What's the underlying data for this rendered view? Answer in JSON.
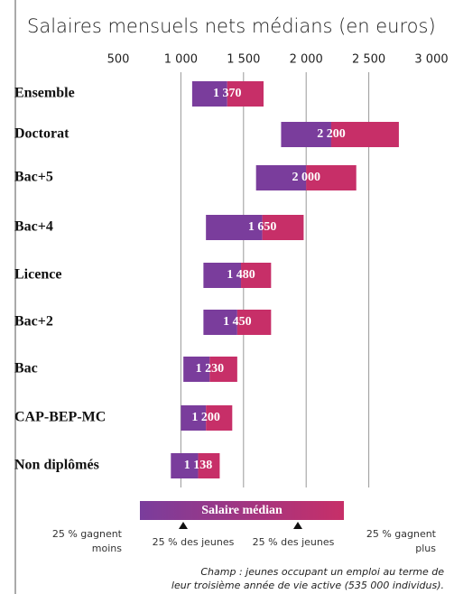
{
  "chart_data": {
    "type": "range_bar",
    "title": "Salaires mensuels nets médians (en euros)",
    "categories": [
      "Ensemble",
      "Doctorat",
      "Bac+5",
      "Bac+4",
      "Licence",
      "Bac+2",
      "Bac",
      "CAP-BEP-MC",
      "Non diplômés"
    ],
    "q1": [
      1090,
      1800,
      1600,
      1200,
      1180,
      1180,
      1020,
      1000,
      920
    ],
    "values": [
      1370,
      2200,
      2000,
      1650,
      1480,
      1450,
      1230,
      1200,
      1138
    ],
    "value_labels": [
      "1 370",
      "2 200",
      "2 000",
      "1 650",
      "1 480",
      "1 450",
      "1 230",
      "1 200",
      "1 138"
    ],
    "q3": [
      1660,
      2740,
      2400,
      1980,
      1720,
      1720,
      1450,
      1410,
      1310
    ],
    "colors": [
      "#7a3d9c",
      "#c72f68"
    ],
    "xlim": [
      500,
      3000
    ],
    "xticks": [
      500,
      {
        "value": 1000,
        "label": "1 000"
      },
      {
        "value": 1500,
        "label": "1 500"
      },
      {
        "value": 2000,
        "label": "2 000"
      },
      {
        "value": 2500,
        "label": "2 500"
      },
      {
        "value": 3000,
        "label": "3 000"
      }
    ],
    "grid": true,
    "legend": {
      "label": "Salaire médian",
      "left_text": [
        "25 % gagnent",
        "moins"
      ],
      "inner_left": "25 % des jeunes",
      "inner_right": "25 % des jeunes",
      "right_text": [
        "25 % gagnent",
        "plus"
      ]
    },
    "note": [
      "Champ : jeunes occupant un emploi au terme de",
      "leur troisième année de vie active (535 000 individus)."
    ]
  }
}
